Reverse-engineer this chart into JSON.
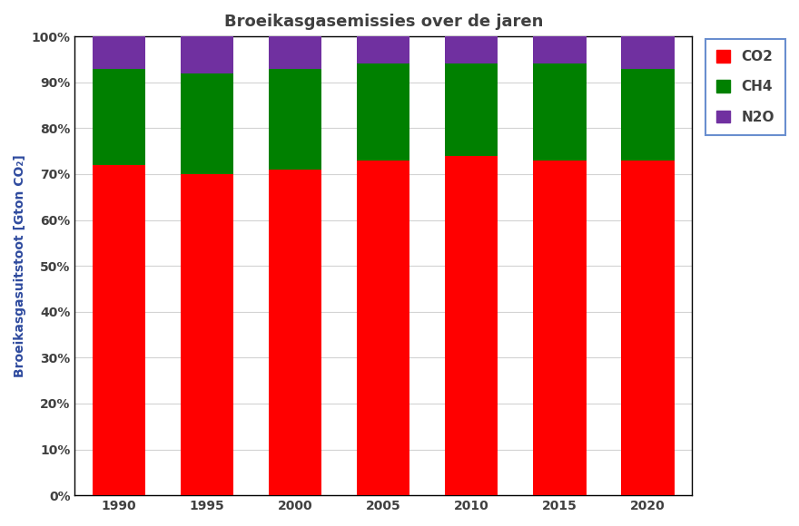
{
  "years": [
    1990,
    1995,
    2000,
    2005,
    2010,
    2015,
    2020
  ],
  "co2": [
    72,
    70,
    71,
    73,
    74,
    73,
    73
  ],
  "ch4": [
    21,
    22,
    22,
    21,
    20,
    21,
    20
  ],
  "n2o": [
    7,
    8,
    7,
    6,
    6,
    6,
    7
  ],
  "co2_color": "#FF0000",
  "ch4_color": "#008000",
  "n2o_color": "#7030A0",
  "title": "Broeikasgasemissies over de jaren",
  "ylabel": "Broeikasgasuitstoot [Gton CO₂]",
  "title_fontsize": 13,
  "label_fontsize": 10,
  "tick_fontsize": 10,
  "legend_fontsize": 11,
  "bar_width": 3.0,
  "ylim": [
    0,
    100
  ],
  "yticks": [
    0,
    10,
    20,
    30,
    40,
    50,
    60,
    70,
    80,
    90,
    100
  ],
  "background_color": "#FFFFFF",
  "grid_color": "#D3D3D3",
  "text_color": "#404040",
  "ylabel_color": "#2E4A9E",
  "legend_edge_color": "#4472C4",
  "title_color": "#404040"
}
